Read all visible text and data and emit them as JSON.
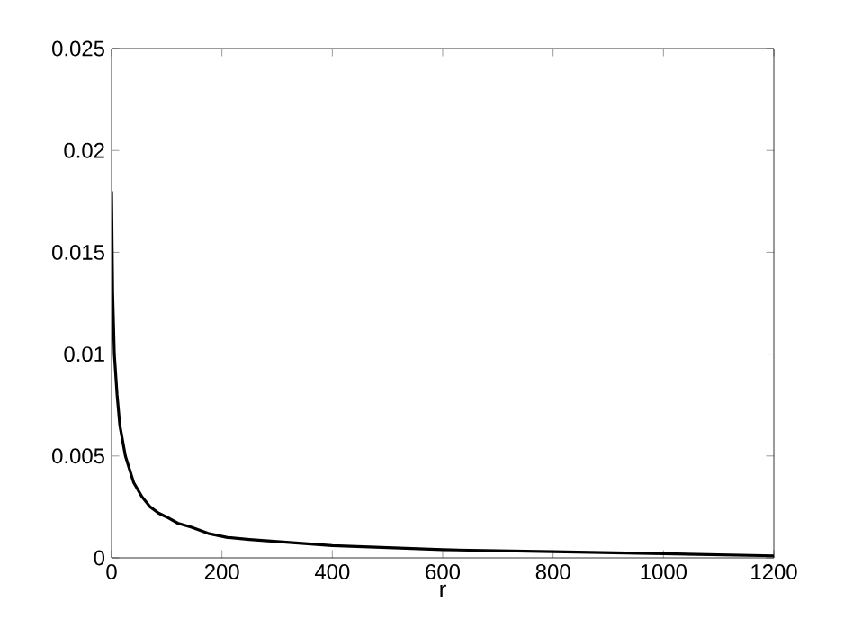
{
  "chart_data": {
    "type": "line",
    "xlabel": "r",
    "x": [
      0,
      2,
      5,
      10,
      15,
      25,
      40,
      55,
      70,
      85,
      100,
      120,
      145,
      175,
      210,
      250,
      300,
      400,
      500,
      600,
      800,
      1000,
      1200
    ],
    "series": [
      {
        "color": "#000000",
        "values": [
          0.018,
          0.013,
          0.01,
          0.008,
          0.0065,
          0.005,
          0.0037,
          0.003,
          0.0025,
          0.0022,
          0.002,
          0.0017,
          0.0015,
          0.0012,
          0.001,
          0.0009,
          0.0008,
          0.0006,
          0.0005,
          0.0004,
          0.0003,
          0.0002,
          0.0001
        ]
      }
    ],
    "xlim": [
      0,
      1200
    ],
    "xticks": [
      0,
      200,
      400,
      600,
      800,
      1000,
      1200
    ],
    "ylim": [
      0,
      0.025
    ],
    "yticks": [
      0,
      0.005,
      0.01,
      0.015,
      0.02,
      0.025
    ]
  }
}
